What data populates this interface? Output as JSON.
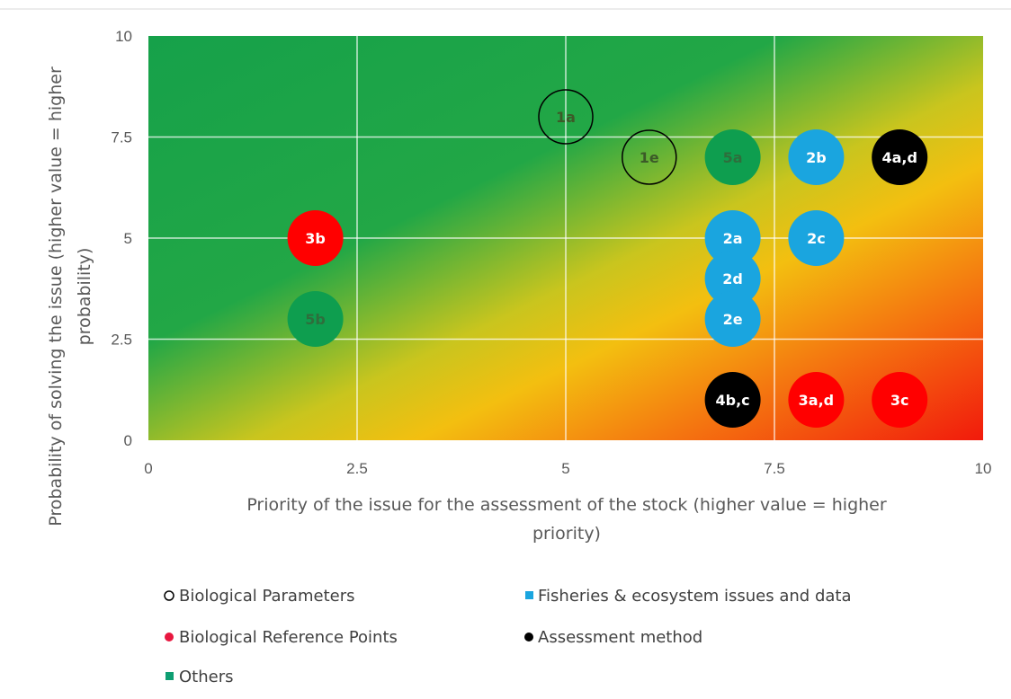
{
  "colors": {
    "fisheries": "#1AA5DF",
    "reference": "#FF0000",
    "assessment": "#000000",
    "others": "#0E9E4F",
    "others_label": "#2E6E3C",
    "background_green": "#1AA64A",
    "background_yellow": "#F5C614",
    "background_red": "#F41A0C"
  },
  "chart_data": {
    "type": "scatter",
    "xlabel_line1": "Priority of the issue for the assessment of the stock (higher value = higher",
    "xlabel_line2": "priority)",
    "ylabel_line1": "Probability of solving the issue (higher value = higher",
    "ylabel_line2": "probability)",
    "xlim": [
      0,
      10
    ],
    "ylim": [
      0,
      10
    ],
    "x_ticks": [
      "0",
      "2.5",
      "5",
      "7.5",
      "10"
    ],
    "y_ticks": [
      "0",
      "2.5",
      "5",
      "7.5",
      "10"
    ],
    "grid": true,
    "background": "gradient green (top-left) to yellow to red (bottom-right)",
    "legend_placement": "bottom",
    "legend": [
      {
        "label": "Biological Parameters",
        "marker": "open-circle",
        "color": "#000000"
      },
      {
        "label": "Fisheries & ecosystem issues and data",
        "marker": "filled-square",
        "color": "#1AA5DF"
      },
      {
        "label": "Biological Reference Points",
        "marker": "filled-circle",
        "color": "#E8173F"
      },
      {
        "label": "Assessment method",
        "marker": "filled-circle",
        "color": "#000000"
      },
      {
        "label": "Others",
        "marker": "filled-square",
        "color": "#0E9E72"
      }
    ],
    "series": [
      {
        "name": "Biological Parameters",
        "style": "open",
        "color": "#000000",
        "points": [
          {
            "x": 5,
            "y": 8,
            "label": "1a"
          },
          {
            "x": 6,
            "y": 7,
            "label": "1e"
          }
        ]
      },
      {
        "name": "Fisheries & ecosystem issues and data",
        "style": "filled",
        "color": "#1AA5DF",
        "points": [
          {
            "x": 8,
            "y": 7,
            "label": "2b"
          },
          {
            "x": 7,
            "y": 5,
            "label": "2a"
          },
          {
            "x": 8,
            "y": 5,
            "label": "2c"
          },
          {
            "x": 7,
            "y": 4,
            "label": "2d"
          },
          {
            "x": 7,
            "y": 3,
            "label": "2e"
          }
        ]
      },
      {
        "name": "Biological Reference Points",
        "style": "filled",
        "color": "#FF0000",
        "points": [
          {
            "x": 2,
            "y": 5,
            "label": "3b"
          },
          {
            "x": 8,
            "y": 1,
            "label": "3a,d"
          },
          {
            "x": 9,
            "y": 1,
            "label": "3c"
          }
        ]
      },
      {
        "name": "Assessment method",
        "style": "filled",
        "color": "#000000",
        "points": [
          {
            "x": 9,
            "y": 7,
            "label": "4a,d"
          },
          {
            "x": 7,
            "y": 1,
            "label": "4b,c"
          }
        ]
      },
      {
        "name": "Others",
        "style": "filled",
        "color": "#0E9E4F",
        "points": [
          {
            "x": 7,
            "y": 7,
            "label": "5a"
          },
          {
            "x": 2,
            "y": 3,
            "label": "5b"
          }
        ]
      }
    ]
  }
}
